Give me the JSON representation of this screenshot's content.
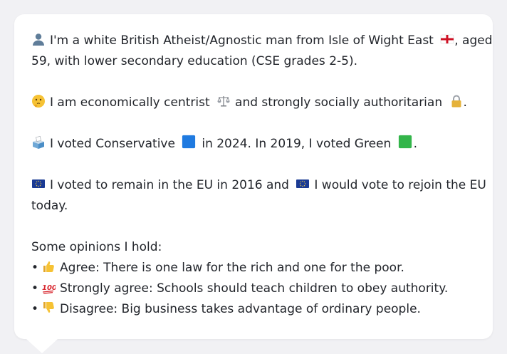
{
  "profile": {
    "identity_text": "I'm a white British Atheist/Agnostic man from Isle of Wight East",
    "identity_age": ", aged",
    "identity_line2": "59, with lower secondary education (CSE grades 2-5).",
    "economics_text": "I am economically centrist",
    "social_text": "and strongly socially authoritarian",
    "social_end": ".",
    "vote_2024_text": "I voted Conservative",
    "vote_2024_year": "in 2024. In 2019, I voted Green",
    "vote_2019_end": ".",
    "eu_text": "I voted to remain in the EU in 2016 and",
    "eu_text2": "I would vote to rejoin the EU",
    "eu_line2": "today."
  },
  "opinions": {
    "heading": "Some opinions I hold:",
    "items": [
      {
        "bullet": "•",
        "icon": "thumbs-up-icon",
        "text": "Agree: There is one law for the rich and one for the poor."
      },
      {
        "bullet": "•",
        "icon": "hundred-points-icon",
        "text": "Strongly agree: Schools should teach children to obey authority."
      },
      {
        "bullet": "•",
        "icon": "thumbs-down-icon",
        "text": "Disagree: Big business takes advantage of ordinary people."
      }
    ]
  },
  "icons": {
    "person": "bust-in-silhouette-icon",
    "england_flag": "england-flag-icon",
    "thinking": "thinking-face-icon",
    "scales": "balance-scale-icon",
    "lock": "lock-icon",
    "ballot": "ballot-box-icon",
    "conservative_square": "blue-square-icon",
    "green_square": "green-square-icon",
    "eu_flag": "eu-flag-icon"
  },
  "colors": {
    "background": "#f1f1f4",
    "bubble": "#ffffff",
    "text": "#22252b",
    "conservative_blue": "#1f7ae0",
    "green": "#33b54a",
    "eu_blue": "#1a3a94"
  }
}
